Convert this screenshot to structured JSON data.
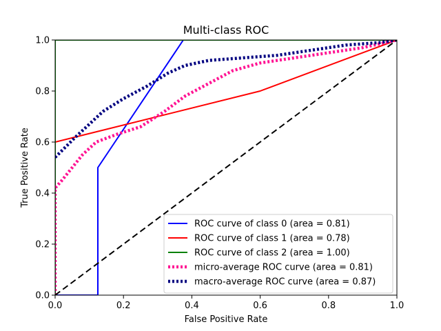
{
  "chart_data": {
    "type": "line",
    "title": "Multi-class ROC",
    "xlabel": "False Positive Rate",
    "ylabel": "True Positive Rate",
    "xlim": [
      0,
      1
    ],
    "ylim": [
      0,
      1
    ],
    "xticks": [
      "0.0",
      "0.2",
      "0.4",
      "0.6",
      "0.8",
      "1.0"
    ],
    "yticks": [
      "0.0",
      "0.2",
      "0.4",
      "0.6",
      "0.8",
      "1.0"
    ],
    "grid": false,
    "legend_position": "lower-right",
    "series": [
      {
        "name": "ROC curve of class 0 (area = 0.81)",
        "color": "#0000ff",
        "style": "solid",
        "points": [
          [
            0,
            0
          ],
          [
            0.125,
            0
          ],
          [
            0.125,
            0.5
          ],
          [
            0.375,
            1.0
          ],
          [
            1.0,
            1.0
          ]
        ]
      },
      {
        "name": "ROC curve of class 1 (area = 0.78)",
        "color": "#ff0000",
        "style": "solid",
        "points": [
          [
            0,
            0
          ],
          [
            0,
            0.6
          ],
          [
            0.6,
            0.8
          ],
          [
            1.0,
            1.0
          ]
        ]
      },
      {
        "name": "ROC curve of class 2 (area = 1.00)",
        "color": "#008000",
        "style": "solid",
        "points": [
          [
            0,
            0
          ],
          [
            0,
            1.0
          ],
          [
            1.0,
            1.0
          ]
        ]
      },
      {
        "name": "micro-average ROC curve (area = 0.81)",
        "color": "#ff1493",
        "style": "dotted",
        "points": [
          [
            0,
            0
          ],
          [
            0,
            0.42
          ],
          [
            0.02,
            0.45
          ],
          [
            0.05,
            0.5
          ],
          [
            0.08,
            0.55
          ],
          [
            0.12,
            0.6
          ],
          [
            0.18,
            0.63
          ],
          [
            0.25,
            0.66
          ],
          [
            0.32,
            0.72
          ],
          [
            0.38,
            0.78
          ],
          [
            0.45,
            0.83
          ],
          [
            0.52,
            0.88
          ],
          [
            0.6,
            0.91
          ],
          [
            0.7,
            0.93
          ],
          [
            0.8,
            0.95
          ],
          [
            0.9,
            0.97
          ],
          [
            1.0,
            1.0
          ]
        ]
      },
      {
        "name": "macro-average ROC curve (area = 0.87)",
        "color": "#000080",
        "style": "dotted",
        "points": [
          [
            0,
            0.54
          ],
          [
            0.03,
            0.58
          ],
          [
            0.06,
            0.62
          ],
          [
            0.1,
            0.67
          ],
          [
            0.14,
            0.72
          ],
          [
            0.2,
            0.77
          ],
          [
            0.27,
            0.82
          ],
          [
            0.33,
            0.87
          ],
          [
            0.38,
            0.9
          ],
          [
            0.45,
            0.92
          ],
          [
            0.55,
            0.93
          ],
          [
            0.65,
            0.94
          ],
          [
            0.75,
            0.96
          ],
          [
            0.85,
            0.98
          ],
          [
            0.95,
            0.99
          ],
          [
            1.0,
            1.0
          ]
        ]
      },
      {
        "name": "",
        "color": "#000000",
        "style": "dashed",
        "points": [
          [
            0,
            0
          ],
          [
            1,
            1
          ]
        ]
      }
    ]
  }
}
